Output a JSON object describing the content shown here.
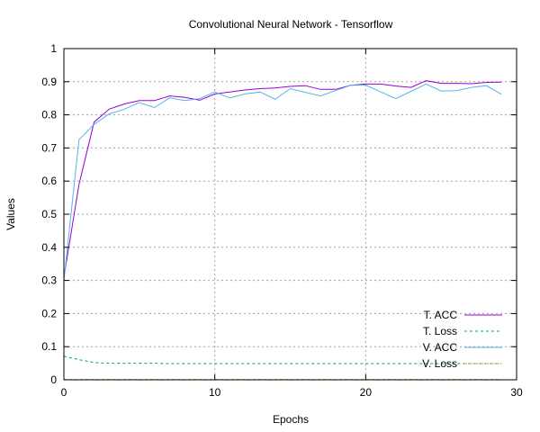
{
  "chart_data": {
    "type": "line",
    "title": "Convolutional Neural Network - Tensorflow",
    "xlabel": "Epochs",
    "ylabel": "Values",
    "xlim": [
      0,
      30
    ],
    "ylim": [
      0,
      1
    ],
    "x_ticks": [
      "0",
      "10",
      "20",
      "30"
    ],
    "y_ticks": [
      "0",
      "0.1",
      "0.2",
      "0.3",
      "0.4",
      "0.5",
      "0.6",
      "0.7",
      "0.8",
      "0.9",
      "1"
    ],
    "grid": true,
    "legend_position": "bottom-right",
    "x": [
      0,
      1,
      2,
      3,
      4,
      5,
      6,
      7,
      8,
      9,
      10,
      11,
      12,
      13,
      14,
      15,
      16,
      17,
      18,
      19,
      20,
      21,
      22,
      23,
      24,
      25,
      26,
      27,
      28,
      29
    ],
    "series": [
      {
        "name": "T. ACC",
        "color": "#9400d3",
        "dash": "solid",
        "values": [
          0.31,
          0.59,
          0.778,
          0.817,
          0.833,
          0.843,
          0.843,
          0.857,
          0.853,
          0.844,
          0.863,
          0.869,
          0.875,
          0.879,
          0.881,
          0.886,
          0.888,
          0.877,
          0.877,
          0.889,
          0.893,
          0.893,
          0.887,
          0.883,
          0.903,
          0.895,
          0.895,
          0.894,
          0.898,
          0.899
        ]
      },
      {
        "name": "T. Loss",
        "color": "#009e73",
        "dash": "dashed",
        "values": [
          0.071,
          0.061,
          0.052,
          0.05,
          0.05,
          0.05,
          0.05,
          0.049,
          0.049,
          0.049,
          0.049,
          0.049,
          0.049,
          0.049,
          0.049,
          0.049,
          0.049,
          0.049,
          0.049,
          0.049,
          0.049,
          0.049,
          0.049,
          0.049,
          0.049,
          0.049,
          0.049,
          0.049,
          0.049,
          0.049
        ]
      },
      {
        "name": "V. ACC",
        "color": "#56b4e9",
        "dash": "solid",
        "values": [
          0.3,
          0.725,
          0.771,
          0.803,
          0.817,
          0.837,
          0.822,
          0.851,
          0.843,
          0.849,
          0.869,
          0.851,
          0.863,
          0.869,
          0.847,
          0.879,
          0.868,
          0.857,
          0.873,
          0.889,
          0.89,
          0.869,
          0.849,
          0.871,
          0.893,
          0.872,
          0.873,
          0.883,
          0.888,
          0.862
        ]
      },
      {
        "name": "V. Loss",
        "color": "#e69f00",
        "dash": "dashed",
        "values": [
          0.001,
          0.001,
          0.001,
          0.001,
          0.001,
          0.001,
          0.001,
          0.001,
          0.001,
          0.001,
          0.001,
          0.001,
          0.001,
          0.001,
          0.001,
          0.001,
          0.001,
          0.001,
          0.001,
          0.001,
          0.001,
          0.001,
          0.001,
          0.001,
          0.001,
          0.001,
          0.001,
          0.001,
          0.001,
          0.001
        ]
      }
    ]
  }
}
